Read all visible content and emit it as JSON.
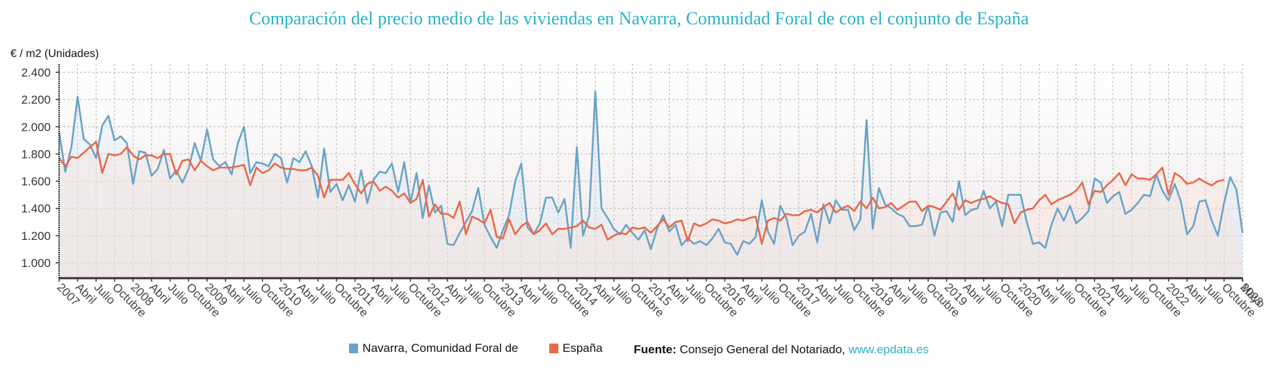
{
  "chart_data": {
    "type": "line",
    "title": "Comparación del precio medio de las viviendas en Navarra, Comunidad Foral de con el conjunto de España",
    "ylabel": "€ / m2 (Unidades)",
    "xlabel": "",
    "ylim": [
      888,
      2430
    ],
    "yticks": [
      "1.000",
      "1.200",
      "1.400",
      "1.600",
      "1.800",
      "2.000",
      "2.200",
      "2.400"
    ],
    "ytick_values": [
      1000,
      1200,
      1400,
      1600,
      1800,
      2000,
      2200,
      2400
    ],
    "grid": true,
    "legend_position": "bottom",
    "start": "2007-01",
    "end": "2023-05",
    "xtick_labels": [
      "2007",
      "Abril",
      "Julio",
      "Octubre",
      "2008",
      "Abril",
      "Julio",
      "Octubre",
      "2009",
      "Abril",
      "Julio",
      "Octubre",
      "2010",
      "Abril",
      "Julio",
      "Octubre",
      "2011",
      "Abril",
      "Julio",
      "Octubre",
      "2012",
      "Abril",
      "Julio",
      "Octubre",
      "2013",
      "Abril",
      "Julio",
      "Octubre",
      "2014",
      "Abril",
      "Julio",
      "Octubre",
      "2015",
      "Abril",
      "Julio",
      "Octubre",
      "2016",
      "Abril",
      "Julio",
      "Octubre",
      "2017",
      "Abril",
      "Julio",
      "Octubre",
      "2018",
      "Abril",
      "Julio",
      "Octubre",
      "2019",
      "Abril",
      "Julio",
      "Octubre",
      "2020",
      "Abril",
      "Julio",
      "Octubre",
      "2021",
      "Abril",
      "Julio",
      "Octubre",
      "2022",
      "Abril",
      "Julio",
      "Octubre",
      "2023",
      "Mayo"
    ],
    "series": [
      {
        "name": "Navarra, Comunidad Foral de",
        "color": "#6aa3c6",
        "values": [
          1960,
          1670,
          1850,
          2220,
          1910,
          1870,
          1770,
          2010,
          2080,
          1900,
          1930,
          1880,
          1580,
          1820,
          1810,
          1640,
          1690,
          1830,
          1620,
          1680,
          1590,
          1690,
          1880,
          1750,
          1980,
          1760,
          1710,
          1740,
          1650,
          1880,
          2000,
          1660,
          1740,
          1730,
          1710,
          1800,
          1770,
          1590,
          1770,
          1740,
          1820,
          1710,
          1480,
          1840,
          1520,
          1580,
          1460,
          1570,
          1450,
          1680,
          1440,
          1610,
          1670,
          1660,
          1730,
          1520,
          1740,
          1440,
          1660,
          1330,
          1570,
          1370,
          1420,
          1140,
          1130,
          1220,
          1300,
          1380,
          1550,
          1280,
          1190,
          1110,
          1240,
          1350,
          1600,
          1730,
          1260,
          1210,
          1290,
          1480,
          1480,
          1370,
          1470,
          1110,
          1850,
          1200,
          1350,
          2260,
          1400,
          1330,
          1250,
          1210,
          1280,
          1220,
          1170,
          1240,
          1100,
          1250,
          1350,
          1230,
          1280,
          1130,
          1180,
          1140,
          1160,
          1130,
          1180,
          1250,
          1150,
          1140,
          1060,
          1160,
          1140,
          1190,
          1460,
          1230,
          1140,
          1420,
          1330,
          1130,
          1200,
          1230,
          1360,
          1150,
          1430,
          1290,
          1460,
          1390,
          1390,
          1240,
          1320,
          2050,
          1250,
          1550,
          1430,
          1400,
          1360,
          1340,
          1270,
          1270,
          1280,
          1420,
          1200,
          1370,
          1380,
          1300,
          1600,
          1350,
          1390,
          1400,
          1530,
          1400,
          1450,
          1270,
          1500,
          1500,
          1500,
          1300,
          1140,
          1150,
          1110,
          1280,
          1400,
          1310,
          1420,
          1290,
          1330,
          1380,
          1620,
          1590,
          1440,
          1490,
          1520,
          1360,
          1390,
          1440,
          1500,
          1490,
          1650,
          1530,
          1460,
          1580,
          1450,
          1210,
          1270,
          1450,
          1460,
          1310,
          1200,
          1440,
          1630,
          1540,
          1220
        ]
      },
      {
        "name": "España",
        "color": "#e8694a",
        "values": [
          1770,
          1710,
          1780,
          1770,
          1810,
          1850,
          1890,
          1660,
          1800,
          1790,
          1800,
          1850,
          1790,
          1760,
          1790,
          1790,
          1770,
          1800,
          1800,
          1650,
          1750,
          1760,
          1680,
          1750,
          1710,
          1680,
          1700,
          1700,
          1700,
          1710,
          1720,
          1570,
          1700,
          1660,
          1680,
          1730,
          1700,
          1690,
          1690,
          1680,
          1680,
          1700,
          1640,
          1480,
          1610,
          1610,
          1610,
          1660,
          1580,
          1510,
          1580,
          1600,
          1530,
          1560,
          1530,
          1480,
          1510,
          1440,
          1470,
          1610,
          1340,
          1430,
          1360,
          1360,
          1330,
          1450,
          1210,
          1340,
          1320,
          1290,
          1390,
          1190,
          1180,
          1320,
          1210,
          1270,
          1300,
          1210,
          1240,
          1290,
          1210,
          1250,
          1250,
          1260,
          1270,
          1310,
          1260,
          1250,
          1280,
          1170,
          1200,
          1220,
          1210,
          1260,
          1250,
          1260,
          1220,
          1270,
          1320,
          1260,
          1300,
          1310,
          1160,
          1290,
          1270,
          1290,
          1320,
          1310,
          1290,
          1300,
          1320,
          1310,
          1330,
          1340,
          1140,
          1310,
          1330,
          1310,
          1360,
          1350,
          1350,
          1380,
          1390,
          1370,
          1410,
          1440,
          1370,
          1400,
          1420,
          1380,
          1450,
          1400,
          1480,
          1400,
          1410,
          1440,
          1390,
          1420,
          1450,
          1450,
          1380,
          1420,
          1410,
          1390,
          1450,
          1510,
          1390,
          1460,
          1440,
          1460,
          1470,
          1490,
          1460,
          1440,
          1430,
          1290,
          1370,
          1390,
          1400,
          1460,
          1500,
          1430,
          1460,
          1480,
          1500,
          1530,
          1590,
          1430,
          1530,
          1520,
          1570,
          1610,
          1660,
          1570,
          1650,
          1620,
          1620,
          1610,
          1650,
          1700,
          1500,
          1660,
          1630,
          1580,
          1590,
          1620,
          1590,
          1570,
          1600,
          1610
        ]
      }
    ]
  },
  "legend": {
    "items": [
      {
        "label": "Navarra, Comunidad Foral de",
        "color": "#6aa3c6"
      },
      {
        "label": "España",
        "color": "#e8694a"
      }
    ],
    "source_label": "Fuente:",
    "source_text": "Consejo General del Notariado,",
    "source_link": "www.epdata.es"
  }
}
